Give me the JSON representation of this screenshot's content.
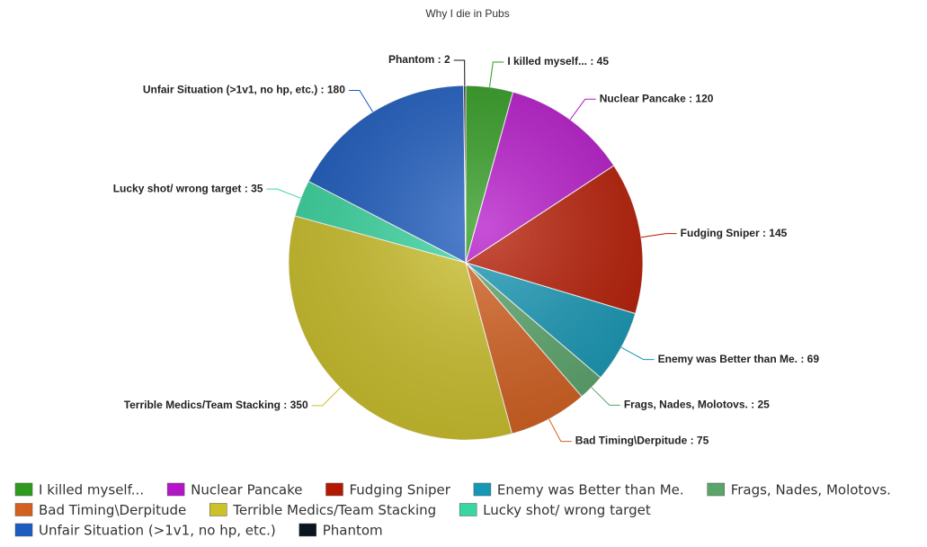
{
  "chart_data": {
    "type": "pie",
    "title": "Why I die in Pubs",
    "categories": [
      "I killed myself...",
      "Nuclear Pancake",
      "Fudging Sniper",
      "Enemy was Better than Me.",
      "Frags, Nades, Molotovs.",
      "Bad Timing\\Derpitude",
      "Terrible Medics/Team Stacking",
      "Lucky shot/ wrong target",
      "Unfair Situation (>1v1, no hp, etc.)",
      "Phantom"
    ],
    "values": [
      45,
      120,
      145,
      69,
      25,
      75,
      350,
      35,
      180,
      2
    ],
    "value_labels": [
      "I killed myself... : 45",
      "Nuclear Pancake : 120",
      "Fudging Sniper : 145",
      "Enemy was Better than Me. : 69",
      "Frags, Nades, Molotovs. : 25",
      "Bad Timing\\Derpitude : 75",
      "Terrible Medics/Team Stacking : 350",
      "Lucky shot/ wrong target : 35",
      "Unfair Situation (>1v1, no hp, etc.) : 180",
      "Phantom : 2"
    ],
    "colors": [
      "#2e9a1e",
      "#b515c9",
      "#b51800",
      "#1597b5",
      "#5aa56a",
      "#d4601f",
      "#ccc02b",
      "#3ad6a0",
      "#1c5bbf",
      "#0a1520"
    ],
    "legend": "bottom"
  }
}
